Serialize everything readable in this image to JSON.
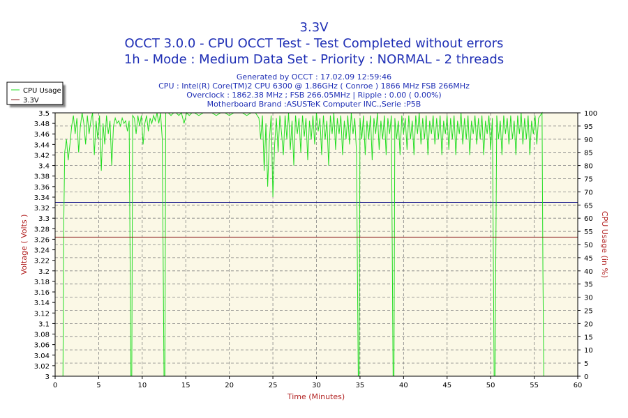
{
  "chart_data": {
    "type": "line",
    "title": "3.3V",
    "subtitle_lines": [
      "OCCT 3.0.0 - CPU OCCT Test - Test Completed without errors",
      "1h - Mode : Medium Data Set - Priority : NORMAL - 2 threads"
    ],
    "info_lines": [
      "Generated by OCCT : 17.02.09 12:59:46",
      "CPU : Intel(R) Core(TM)2 CPU 6300 @ 1.86GHz ( Conroe ) 1866 MHz FSB 266MHz",
      "Overclock : 1862.38 MHz ; FSB 266.05MHz | Ripple : 0.00 ( 0.00%)",
      "Motherboard Brand :ASUSTeK Computer INC.,Serie :P5B"
    ],
    "xlabel": "Time (Minutes)",
    "ylabel_left": "Voltage ( Volts )",
    "ylabel_right": "CPU Usage (in %)",
    "xlim": [
      0,
      60
    ],
    "ylim_left": [
      3.0,
      3.5
    ],
    "ylim_right": [
      0,
      100
    ],
    "x_ticks": [
      0,
      5,
      10,
      15,
      20,
      25,
      30,
      35,
      40,
      45,
      50,
      55,
      60
    ],
    "y_left_ticks": [
      3,
      3.02,
      3.04,
      3.06,
      3.08,
      3.1,
      3.12,
      3.14,
      3.16,
      3.18,
      3.2,
      3.22,
      3.24,
      3.26,
      3.28,
      3.3,
      3.32,
      3.34,
      3.36,
      3.38,
      3.4,
      3.42,
      3.44,
      3.46,
      3.48,
      3.5
    ],
    "y_right_ticks": [
      0,
      5,
      10,
      15,
      20,
      25,
      30,
      35,
      40,
      45,
      50,
      55,
      60,
      65,
      70,
      75,
      80,
      85,
      90,
      95,
      100
    ],
    "grid": true,
    "legend_position": "top-left",
    "series": [
      {
        "name": "CPU Usage",
        "axis": "right",
        "color": "#22dd22",
        "points": [
          [
            0.9,
            0
          ],
          [
            1.0,
            60
          ],
          [
            1.1,
            85
          ],
          [
            1.3,
            90
          ],
          [
            1.5,
            82
          ],
          [
            1.7,
            88
          ],
          [
            1.9,
            95
          ],
          [
            2.1,
            99
          ],
          [
            2.3,
            92
          ],
          [
            2.5,
            98
          ],
          [
            2.7,
            85
          ],
          [
            2.9,
            95
          ],
          [
            3.1,
            100
          ],
          [
            3.3,
            96
          ],
          [
            3.5,
            88
          ],
          [
            3.7,
            99
          ],
          [
            3.9,
            92
          ],
          [
            4.1,
            97
          ],
          [
            4.3,
            100
          ],
          [
            4.5,
            84
          ],
          [
            4.7,
            97
          ],
          [
            4.9,
            90
          ],
          [
            5.1,
            99
          ],
          [
            5.3,
            78
          ],
          [
            5.5,
            96
          ],
          [
            5.7,
            88
          ],
          [
            5.9,
            99
          ],
          [
            6.1,
            92
          ],
          [
            6.3,
            97
          ],
          [
            6.5,
            80
          ],
          [
            6.7,
            95
          ],
          [
            6.9,
            98
          ],
          [
            7.1,
            96
          ],
          [
            7.3,
            97
          ],
          [
            7.5,
            95
          ],
          [
            7.7,
            98
          ],
          [
            7.9,
            96
          ],
          [
            8.1,
            97
          ],
          [
            8.3,
            93
          ],
          [
            8.5,
            97
          ],
          [
            8.7,
            0
          ],
          [
            8.8,
            0
          ],
          [
            8.9,
            99
          ],
          [
            9.1,
            98
          ],
          [
            9.3,
            92
          ],
          [
            9.5,
            99
          ],
          [
            9.7,
            95
          ],
          [
            9.9,
            99
          ],
          [
            10.1,
            88
          ],
          [
            10.3,
            96
          ],
          [
            10.5,
            99
          ],
          [
            10.7,
            93
          ],
          [
            10.9,
            98
          ],
          [
            11.1,
            96
          ],
          [
            11.3,
            99
          ],
          [
            11.5,
            97
          ],
          [
            11.7,
            100
          ],
          [
            11.9,
            96
          ],
          [
            12.1,
            100
          ],
          [
            12.3,
            90
          ],
          [
            12.5,
            0
          ],
          [
            12.6,
            0
          ],
          [
            12.7,
            100
          ],
          [
            13.0,
            100
          ],
          [
            13.3,
            99
          ],
          [
            13.6,
            100
          ],
          [
            13.9,
            100
          ],
          [
            14.2,
            99
          ],
          [
            14.5,
            100
          ],
          [
            14.8,
            96
          ],
          [
            15.1,
            100
          ],
          [
            15.4,
            99
          ],
          [
            15.7,
            100
          ],
          [
            16.0,
            100
          ],
          [
            16.5,
            99
          ],
          [
            17.0,
            100
          ],
          [
            17.5,
            100
          ],
          [
            18.0,
            100
          ],
          [
            18.5,
            99
          ],
          [
            19.0,
            100
          ],
          [
            19.5,
            100
          ],
          [
            20.0,
            99
          ],
          [
            20.5,
            100
          ],
          [
            21.0,
            100
          ],
          [
            21.5,
            100
          ],
          [
            22.0,
            99
          ],
          [
            22.5,
            100
          ],
          [
            23.0,
            100
          ],
          [
            23.4,
            98
          ],
          [
            23.6,
            90
          ],
          [
            23.8,
            99
          ],
          [
            24.0,
            78
          ],
          [
            24.2,
            96
          ],
          [
            24.4,
            72
          ],
          [
            24.6,
            90
          ],
          [
            24.8,
            99
          ],
          [
            25.0,
            68
          ],
          [
            25.2,
            88
          ],
          [
            25.4,
            98
          ],
          [
            25.6,
            85
          ],
          [
            25.8,
            99
          ],
          [
            26.0,
            92
          ],
          [
            26.2,
            84
          ],
          [
            26.4,
            99
          ],
          [
            26.6,
            90
          ],
          [
            26.8,
            100
          ],
          [
            27.0,
            86
          ],
          [
            27.2,
            97
          ],
          [
            27.4,
            80
          ],
          [
            27.6,
            99
          ],
          [
            27.8,
            92
          ],
          [
            28.0,
            98
          ],
          [
            28.2,
            85
          ],
          [
            28.4,
            99
          ],
          [
            28.6,
            91
          ],
          [
            28.8,
            98
          ],
          [
            29.0,
            82
          ],
          [
            29.2,
            97
          ],
          [
            29.4,
            90
          ],
          [
            29.6,
            99
          ],
          [
            29.8,
            88
          ],
          [
            30.0,
            100
          ],
          [
            30.2,
            93
          ],
          [
            30.4,
            98
          ],
          [
            30.6,
            84
          ],
          [
            30.8,
            99
          ],
          [
            31.0,
            90
          ],
          [
            31.2,
            97
          ],
          [
            31.4,
            80
          ],
          [
            31.6,
            99
          ],
          [
            31.8,
            92
          ],
          [
            32.0,
            100
          ],
          [
            32.2,
            86
          ],
          [
            32.4,
            98
          ],
          [
            32.6,
            92
          ],
          [
            32.8,
            99
          ],
          [
            33.0,
            84
          ],
          [
            33.2,
            97
          ],
          [
            33.4,
            90
          ],
          [
            33.6,
            99
          ],
          [
            33.8,
            88
          ],
          [
            34.0,
            100
          ],
          [
            34.2,
            92
          ],
          [
            34.4,
            98
          ],
          [
            34.6,
            85
          ],
          [
            34.8,
            0
          ],
          [
            34.9,
            0
          ],
          [
            35.0,
            98
          ],
          [
            35.2,
            90
          ],
          [
            35.4,
            99
          ],
          [
            35.6,
            84
          ],
          [
            35.8,
            97
          ],
          [
            36.0,
            90
          ],
          [
            36.2,
            99
          ],
          [
            36.4,
            82
          ],
          [
            36.6,
            98
          ],
          [
            36.8,
            92
          ],
          [
            37.0,
            100
          ],
          [
            37.2,
            86
          ],
          [
            37.4,
            97
          ],
          [
            37.6,
            90
          ],
          [
            37.8,
            99
          ],
          [
            38.0,
            84
          ],
          [
            38.2,
            98
          ],
          [
            38.4,
            92
          ],
          [
            38.6,
            99
          ],
          [
            38.8,
            0
          ],
          [
            38.9,
            0
          ],
          [
            39.0,
            98
          ],
          [
            39.2,
            90
          ],
          [
            39.4,
            97
          ],
          [
            39.6,
            84
          ],
          [
            39.8,
            99
          ],
          [
            40.0,
            92
          ],
          [
            40.2,
            98
          ],
          [
            40.4,
            86
          ],
          [
            40.6,
            99
          ],
          [
            40.8,
            90
          ],
          [
            41.0,
            97
          ],
          [
            41.2,
            84
          ],
          [
            41.4,
            99
          ],
          [
            41.6,
            92
          ],
          [
            41.8,
            100
          ],
          [
            42.0,
            88
          ],
          [
            42.2,
            98
          ],
          [
            42.4,
            90
          ],
          [
            42.6,
            99
          ],
          [
            42.8,
            84
          ],
          [
            43.0,
            97
          ],
          [
            43.2,
            92
          ],
          [
            43.4,
            99
          ],
          [
            43.6,
            88
          ],
          [
            43.8,
            98
          ],
          [
            44.0,
            90
          ],
          [
            44.2,
            99
          ],
          [
            44.4,
            84
          ],
          [
            44.6,
            97
          ],
          [
            44.8,
            92
          ],
          [
            45.0,
            99
          ],
          [
            45.2,
            86
          ],
          [
            45.4,
            98
          ],
          [
            45.6,
            90
          ],
          [
            45.8,
            99
          ],
          [
            46.0,
            84
          ],
          [
            46.2,
            97
          ],
          [
            46.4,
            92
          ],
          [
            46.6,
            100
          ],
          [
            46.8,
            88
          ],
          [
            47.0,
            98
          ],
          [
            47.2,
            90
          ],
          [
            47.4,
            99
          ],
          [
            47.6,
            84
          ],
          [
            47.8,
            97
          ],
          [
            48.0,
            92
          ],
          [
            48.2,
            99
          ],
          [
            48.4,
            88
          ],
          [
            48.6,
            98
          ],
          [
            48.8,
            90
          ],
          [
            49.0,
            99
          ],
          [
            49.2,
            84
          ],
          [
            49.4,
            97
          ],
          [
            49.6,
            92
          ],
          [
            49.8,
            99
          ],
          [
            50.0,
            86
          ],
          [
            50.2,
            98
          ],
          [
            50.4,
            0
          ],
          [
            50.5,
            0
          ],
          [
            50.7,
            99
          ],
          [
            50.9,
            90
          ],
          [
            51.1,
            97
          ],
          [
            51.3,
            84
          ],
          [
            51.5,
            99
          ],
          [
            51.7,
            92
          ],
          [
            51.9,
            98
          ],
          [
            52.1,
            88
          ],
          [
            52.3,
            99
          ],
          [
            52.5,
            90
          ],
          [
            52.7,
            97
          ],
          [
            52.9,
            84
          ],
          [
            53.1,
            99
          ],
          [
            53.3,
            92
          ],
          [
            53.5,
            100
          ],
          [
            53.7,
            88
          ],
          [
            53.9,
            98
          ],
          [
            54.1,
            90
          ],
          [
            54.3,
            99
          ],
          [
            54.5,
            84
          ],
          [
            54.7,
            97
          ],
          [
            54.9,
            92
          ],
          [
            55.1,
            99
          ],
          [
            55.3,
            88
          ],
          [
            55.5,
            98
          ],
          [
            55.7,
            99
          ],
          [
            55.9,
            100
          ],
          [
            56.0,
            40
          ],
          [
            56.1,
            0
          ]
        ]
      },
      {
        "name": "3.3V",
        "axis": "left",
        "color": "#8b1a1a",
        "points": [
          [
            0,
            3.264
          ],
          [
            60,
            3.264
          ]
        ]
      }
    ],
    "reference_lines": [
      {
        "axis": "left",
        "value": 3.33,
        "color": "#1a1a8b"
      }
    ]
  }
}
